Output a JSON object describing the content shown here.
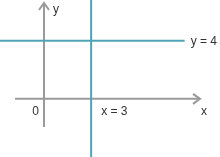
{
  "chart_data": {
    "type": "line",
    "xlabel": "x",
    "ylabel": "y",
    "series": [
      {
        "name": "x = 3",
        "color": "#4fa3b7",
        "x": [
          3,
          3
        ],
        "values": [
          -4,
          6.8
        ]
      },
      {
        "name": "y = 4",
        "color": "#4fa3b7",
        "x": [
          -2.8,
          11.2
        ],
        "values": [
          4,
          4
        ]
      }
    ],
    "xlim": [
      -2.8,
      11.2
    ],
    "ylim": [
      -4,
      6.8
    ],
    "xticks": [
      0
    ],
    "grid": false,
    "tick_labels": "x"
  }
}
